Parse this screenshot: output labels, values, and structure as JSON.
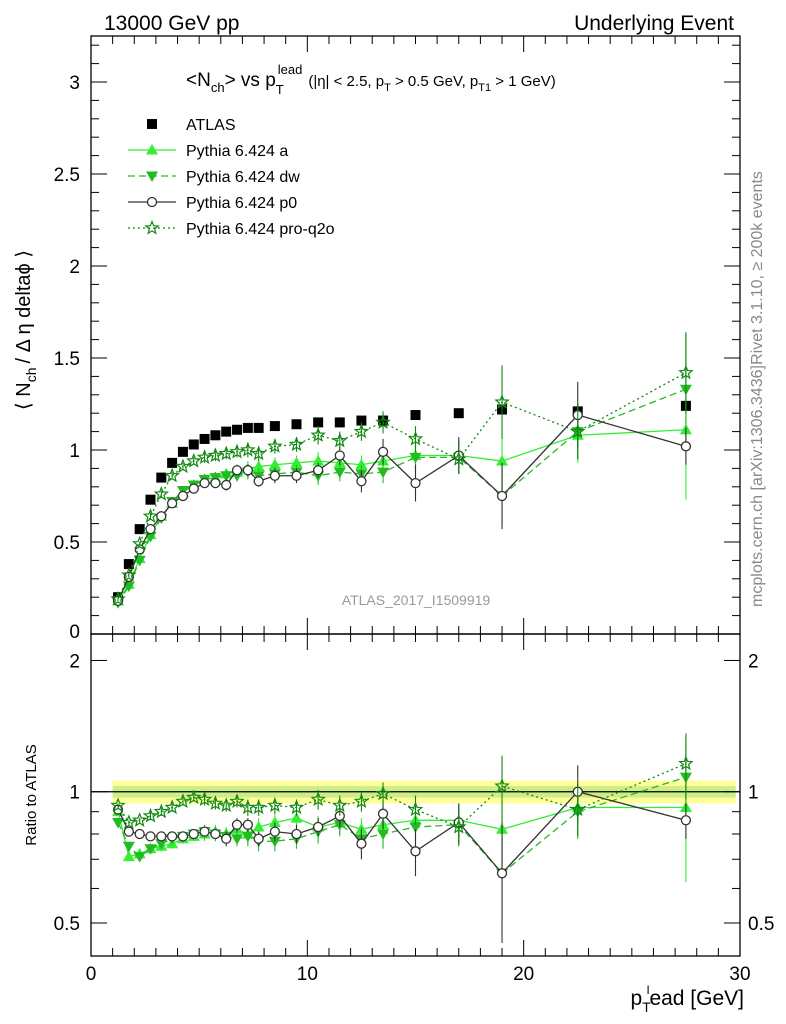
{
  "header": {
    "left": "13000 GeV pp",
    "right": "Underlying Event"
  },
  "plot_title": {
    "main": "<N",
    "main_sub": "ch",
    "vs": "> vs p",
    "vs_sub": "T",
    "vs_sup": "lead",
    "cuts_1": "(|η| < 2.5, p",
    "cuts_sub_1": "T",
    "cuts_2": " > 0.5 GeV, p",
    "cuts_sub_2": "T1",
    "cuts_3": " > 1 GeV)"
  },
  "side_labels": {
    "rivet": "Rivet 3.1.10, ≥ 200k events",
    "mcplots": "mcplots.cern.ch [arXiv:1306.3436]"
  },
  "watermark": "ATLAS_2017_I1509919",
  "axes": {
    "ylabel_main_1": "⟨ N",
    "ylabel_main_sub": "ch",
    "ylabel_main_2": "/ Δ η deltaϕ ⟩",
    "ylabel_ratio": "Ratio to ATLAS",
    "xlabel_1": "p",
    "xlabel_sub": "T",
    "xlabel_sup": "l",
    "xlabel_2": "ead [GeV]"
  },
  "colors": {
    "data": "#000000",
    "pythia_a": "#33ee33",
    "pythia_dw": "#22bb22",
    "pythia_p0": "#333333",
    "pythia_proq2o": "#118811",
    "band_outer": "#ffff99",
    "band_inner": "#ccee88"
  },
  "chart_data": {
    "type": "scatter",
    "x_range": [
      0,
      30
    ],
    "main_ylim": [
      0,
      3.25
    ],
    "ratio_ylim": [
      0.42,
      2.3
    ],
    "x_ticks": [
      0,
      10,
      20,
      30
    ],
    "x_tick_labels": [
      "0",
      "10",
      "20",
      "30"
    ],
    "main_y_ticks": [
      0,
      0.5,
      1,
      1.5,
      2,
      2.5,
      3
    ],
    "main_y_tick_labels": [
      "0",
      "0.5",
      "1",
      "1.5",
      "2",
      "2.5",
      "3"
    ],
    "ratio_y_ticks": [
      0.5,
      1,
      2
    ],
    "ratio_y_tick_labels": [
      "0.5",
      "1",
      "2"
    ],
    "legend_position": "top-left",
    "series": [
      {
        "name": "ATLAS",
        "style": "data",
        "x": [
          1.25,
          1.75,
          2.25,
          2.75,
          3.25,
          3.75,
          4.25,
          4.75,
          5.25,
          5.75,
          6.25,
          6.75,
          7.25,
          7.75,
          8.5,
          9.5,
          10.5,
          11.5,
          12.5,
          13.5,
          15.0,
          17.0,
          19.0,
          22.5,
          27.5
        ],
        "y": [
          0.2,
          0.38,
          0.57,
          0.73,
          0.85,
          0.93,
          0.99,
          1.03,
          1.06,
          1.08,
          1.1,
          1.11,
          1.12,
          1.12,
          1.13,
          1.14,
          1.15,
          1.15,
          1.16,
          1.16,
          1.19,
          1.2,
          1.22,
          1.21,
          1.24
        ],
        "ratio": [
          1,
          1,
          1,
          1,
          1,
          1,
          1,
          1,
          1,
          1,
          1,
          1,
          1,
          1,
          1,
          1,
          1,
          1,
          1,
          1,
          1,
          1,
          1,
          1,
          1
        ]
      },
      {
        "name": "Pythia 6.424 a",
        "style": "triangle-up solid",
        "x": [
          1.25,
          1.75,
          2.25,
          2.75,
          3.25,
          3.75,
          4.25,
          4.75,
          5.25,
          5.75,
          6.25,
          6.75,
          7.25,
          7.75,
          8.5,
          9.5,
          10.5,
          11.5,
          12.5,
          13.5,
          15.0,
          17.0,
          19.0,
          22.5,
          27.5
        ],
        "y": [
          0.18,
          0.27,
          0.41,
          0.54,
          0.64,
          0.71,
          0.77,
          0.81,
          0.84,
          0.85,
          0.87,
          0.88,
          0.9,
          0.91,
          0.92,
          0.93,
          0.94,
          0.93,
          0.92,
          0.94,
          0.97,
          0.97,
          0.94,
          1.08,
          1.11
        ],
        "y_err": [
          0.01,
          0.01,
          0.01,
          0.02,
          0.02,
          0.02,
          0.02,
          0.02,
          0.03,
          0.03,
          0.03,
          0.03,
          0.04,
          0.04,
          0.04,
          0.04,
          0.05,
          0.05,
          0.05,
          0.06,
          0.07,
          0.08,
          0.15,
          0.15,
          0.38
        ],
        "ratio": [
          0.9,
          0.71,
          0.72,
          0.74,
          0.75,
          0.76,
          0.78,
          0.79,
          0.8,
          0.81,
          0.8,
          0.82,
          0.8,
          0.83,
          0.85,
          0.87,
          0.83,
          0.85,
          0.82,
          0.84,
          0.86,
          0.86,
          0.82,
          0.92,
          0.92
        ],
        "ratio_err": [
          0.01,
          0.01,
          0.01,
          0.02,
          0.02,
          0.02,
          0.02,
          0.02,
          0.03,
          0.03,
          0.03,
          0.03,
          0.04,
          0.04,
          0.04,
          0.04,
          0.05,
          0.05,
          0.05,
          0.06,
          0.07,
          0.08,
          0.13,
          0.12,
          0.3
        ]
      },
      {
        "name": "Pythia 6.424 dw",
        "style": "triangle-down dashed",
        "x": [
          1.25,
          1.75,
          2.25,
          2.75,
          3.25,
          3.75,
          4.25,
          4.75,
          5.25,
          5.75,
          6.25,
          6.75,
          7.25,
          7.75,
          8.5,
          9.5,
          10.5,
          11.5,
          12.5,
          13.5,
          15.0,
          17.0,
          19.0,
          22.5,
          27.5
        ],
        "y": [
          0.17,
          0.26,
          0.4,
          0.53,
          0.63,
          0.72,
          0.78,
          0.81,
          0.84,
          0.85,
          0.86,
          0.86,
          0.88,
          0.86,
          0.87,
          0.88,
          0.86,
          0.88,
          0.87,
          0.88,
          0.96,
          0.96,
          0.75,
          1.1,
          1.33
        ],
        "y_err": [
          0.01,
          0.01,
          0.01,
          0.02,
          0.02,
          0.02,
          0.02,
          0.02,
          0.03,
          0.03,
          0.03,
          0.03,
          0.04,
          0.04,
          0.04,
          0.04,
          0.05,
          0.05,
          0.05,
          0.06,
          0.07,
          0.08,
          0.15,
          0.15,
          0.3
        ],
        "ratio": [
          0.85,
          0.75,
          0.71,
          0.74,
          0.76,
          0.78,
          0.79,
          0.8,
          0.81,
          0.8,
          0.79,
          0.78,
          0.79,
          0.77,
          0.77,
          0.78,
          0.81,
          0.84,
          0.78,
          0.8,
          0.83,
          0.84,
          0.65,
          0.9,
          1.08
        ],
        "ratio_err": [
          0.01,
          0.01,
          0.01,
          0.02,
          0.02,
          0.02,
          0.02,
          0.02,
          0.03,
          0.03,
          0.03,
          0.03,
          0.04,
          0.04,
          0.04,
          0.04,
          0.05,
          0.05,
          0.05,
          0.06,
          0.07,
          0.08,
          0.14,
          0.12,
          0.25
        ]
      },
      {
        "name": "Pythia 6.424 p0",
        "style": "circle-open solid",
        "x": [
          1.25,
          1.75,
          2.25,
          2.75,
          3.25,
          3.75,
          4.25,
          4.75,
          5.25,
          5.75,
          6.25,
          6.75,
          7.25,
          7.75,
          8.5,
          9.5,
          10.5,
          11.5,
          12.5,
          13.5,
          15.0,
          17.0,
          19.0,
          22.5,
          27.5
        ],
        "y": [
          0.18,
          0.31,
          0.46,
          0.57,
          0.64,
          0.71,
          0.75,
          0.79,
          0.82,
          0.82,
          0.81,
          0.89,
          0.89,
          0.83,
          0.86,
          0.86,
          0.89,
          0.97,
          0.83,
          0.99,
          0.82,
          0.97,
          0.75,
          1.19,
          1.02
        ],
        "y_err": [
          0.01,
          0.01,
          0.01,
          0.02,
          0.02,
          0.02,
          0.02,
          0.02,
          0.02,
          0.02,
          0.03,
          0.03,
          0.03,
          0.03,
          0.04,
          0.04,
          0.04,
          0.05,
          0.06,
          0.07,
          0.1,
          0.1,
          0.18,
          0.18,
          0.1
        ],
        "ratio": [
          0.91,
          0.81,
          0.8,
          0.79,
          0.79,
          0.79,
          0.79,
          0.8,
          0.81,
          0.8,
          0.78,
          0.84,
          0.84,
          0.78,
          0.81,
          0.8,
          0.83,
          0.88,
          0.76,
          0.89,
          0.73,
          0.85,
          0.65,
          1.0,
          0.86
        ],
        "ratio_err": [
          0.01,
          0.01,
          0.01,
          0.02,
          0.02,
          0.02,
          0.02,
          0.02,
          0.02,
          0.02,
          0.03,
          0.03,
          0.03,
          0.03,
          0.04,
          0.04,
          0.04,
          0.05,
          0.06,
          0.07,
          0.09,
          0.09,
          0.2,
          0.15,
          0.08
        ]
      },
      {
        "name": "Pythia 6.424 pro-q2o",
        "style": "star dotted",
        "x": [
          1.25,
          1.75,
          2.25,
          2.75,
          3.25,
          3.75,
          4.25,
          4.75,
          5.25,
          5.75,
          6.25,
          6.75,
          7.25,
          7.75,
          8.5,
          9.5,
          10.5,
          11.5,
          12.5,
          13.5,
          15.0,
          17.0,
          19.0,
          22.5,
          27.5
        ],
        "y": [
          0.19,
          0.32,
          0.49,
          0.64,
          0.76,
          0.86,
          0.91,
          0.94,
          0.96,
          0.97,
          0.98,
          0.99,
          1.0,
          0.98,
          1.02,
          1.03,
          1.08,
          1.05,
          1.1,
          1.15,
          1.06,
          0.95,
          1.26,
          1.1,
          1.42
        ],
        "y_err": [
          0.01,
          0.01,
          0.01,
          0.02,
          0.02,
          0.02,
          0.02,
          0.02,
          0.03,
          0.03,
          0.03,
          0.03,
          0.04,
          0.04,
          0.04,
          0.04,
          0.05,
          0.05,
          0.05,
          0.06,
          0.07,
          0.08,
          0.2,
          0.15,
          0.22
        ],
        "ratio": [
          0.93,
          0.85,
          0.86,
          0.88,
          0.9,
          0.92,
          0.95,
          0.97,
          0.96,
          0.94,
          0.93,
          0.95,
          0.92,
          0.92,
          0.93,
          0.92,
          0.96,
          0.93,
          0.95,
          0.99,
          0.91,
          0.83,
          1.03,
          0.91,
          1.16
        ],
        "ratio_err": [
          0.01,
          0.01,
          0.01,
          0.02,
          0.02,
          0.02,
          0.02,
          0.02,
          0.03,
          0.03,
          0.03,
          0.03,
          0.04,
          0.04,
          0.04,
          0.04,
          0.05,
          0.05,
          0.05,
          0.06,
          0.07,
          0.08,
          0.18,
          0.12,
          0.2
        ]
      }
    ]
  }
}
